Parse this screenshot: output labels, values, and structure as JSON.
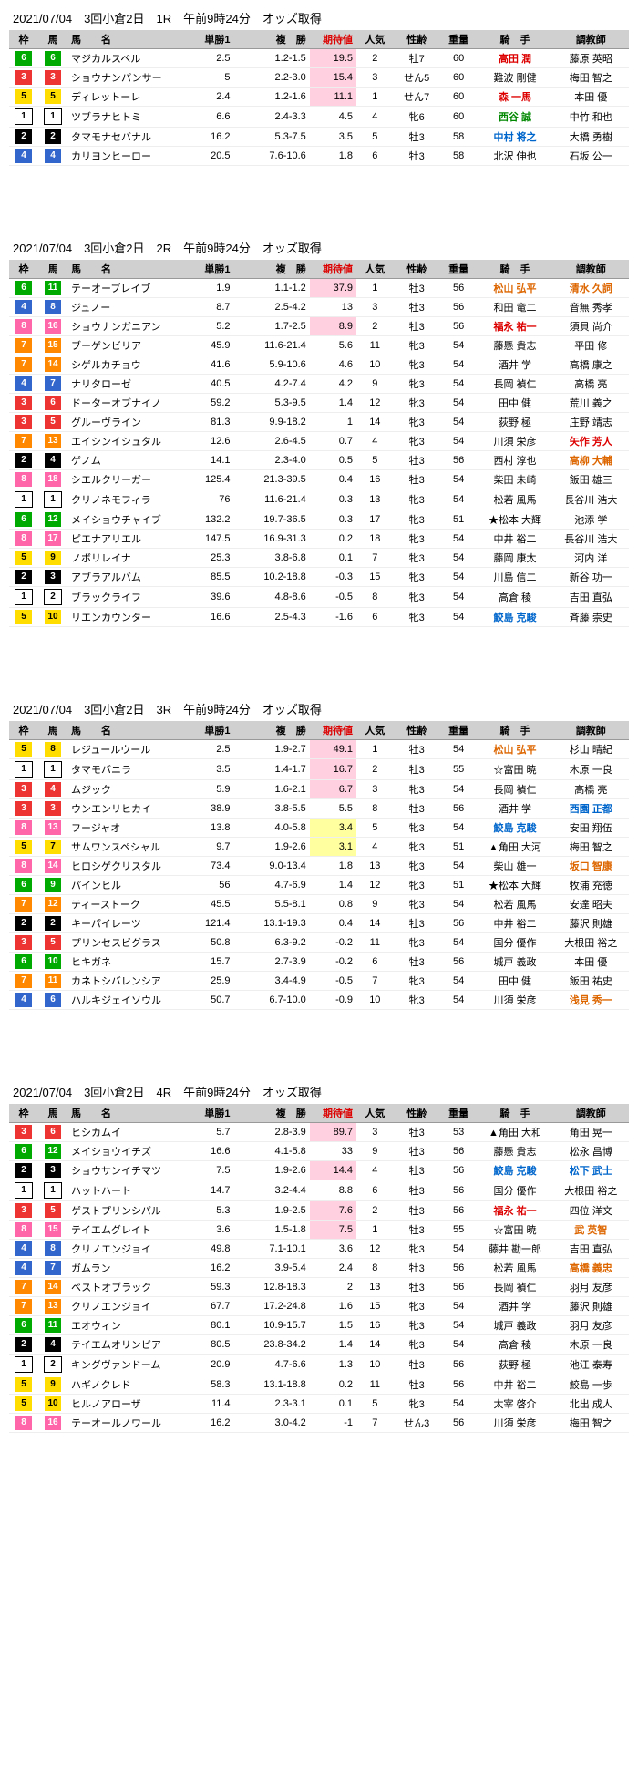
{
  "columns": [
    "枠",
    "馬",
    "馬　　名",
    "単勝1",
    "複　勝",
    "期待値",
    "人気",
    "性齢",
    "重量",
    "騎　手",
    "調教師"
  ],
  "races": [
    {
      "title": "2021/07/04　3回小倉2日　1R　午前9時24分　オッズ取得",
      "rows": [
        {
          "waku": 6,
          "uma": 6,
          "name": "マジカルスペル",
          "tan": "2.5",
          "fuku": "1.2-1.5",
          "kitai": "19.5",
          "kitaiCls": "hi-pink",
          "ninki": 2,
          "sei": "牡7",
          "jur": 60,
          "kishu": "高田 潤",
          "kCls": "red",
          "choku": "藤原 英昭"
        },
        {
          "waku": 3,
          "uma": 3,
          "name": "ショウナンパンサー",
          "tan": "5",
          "fuku": "2.2-3.0",
          "kitai": "15.4",
          "kitaiCls": "hi-pink",
          "ninki": 3,
          "sei": "せん5",
          "jur": 60,
          "kishu": "難波 剛健",
          "choku": "梅田 智之"
        },
        {
          "waku": 5,
          "uma": 5,
          "name": "ディレットーレ",
          "tan": "2.4",
          "fuku": "1.2-1.6",
          "kitai": "11.1",
          "kitaiCls": "hi-pink",
          "ninki": 1,
          "sei": "せん7",
          "jur": 60,
          "kishu": "森 一馬",
          "kCls": "red",
          "choku": "本田 優"
        },
        {
          "waku": 1,
          "uma": 1,
          "name": "ツブラナヒトミ",
          "tan": "6.6",
          "fuku": "2.4-3.3",
          "kitai": "4.5",
          "ninki": 4,
          "sei": "牝6",
          "jur": 60,
          "kishu": "西谷 誠",
          "kCls": "green",
          "choku": "中竹 和也"
        },
        {
          "waku": 2,
          "uma": 2,
          "name": "タマモナセバナル",
          "tan": "16.2",
          "fuku": "5.3-7.5",
          "kitai": "3.5",
          "ninki": 5,
          "sei": "牡3",
          "jur": 58,
          "kishu": "中村 将之",
          "kCls": "blue",
          "choku": "大橋 勇樹"
        },
        {
          "waku": 4,
          "uma": 4,
          "name": "カリヨンヒーロー",
          "tan": "20.5",
          "fuku": "7.6-10.6",
          "kitai": "1.8",
          "ninki": 6,
          "sei": "牡3",
          "jur": 58,
          "kishu": "北沢 伸也",
          "choku": "石坂 公一"
        }
      ]
    },
    {
      "title": "2021/07/04　3回小倉2日　2R　午前9時24分　オッズ取得",
      "rows": [
        {
          "waku": 6,
          "uma": 11,
          "name": "テーオーブレイブ",
          "tan": "1.9",
          "fuku": "1.1-1.2",
          "kitai": "37.9",
          "kitaiCls": "hi-pink",
          "ninki": 1,
          "sei": "牡3",
          "jur": 56,
          "kishu": "松山 弘平",
          "kCls": "orange",
          "choku": "清水 久詞",
          "cCls": "orange"
        },
        {
          "waku": 4,
          "uma": 8,
          "name": "ジュノー",
          "tan": "8.7",
          "fuku": "2.5-4.2",
          "kitai": "13",
          "ninki": 3,
          "sei": "牡3",
          "jur": 56,
          "kishu": "和田 竜二",
          "choku": "音無 秀孝"
        },
        {
          "waku": 8,
          "uma": 16,
          "name": "ショウナンガニアン",
          "tan": "5.2",
          "fuku": "1.7-2.5",
          "kitai": "8.9",
          "kitaiCls": "hi-pink",
          "ninki": 2,
          "sei": "牡3",
          "jur": 56,
          "kishu": "福永 祐一",
          "kCls": "red",
          "choku": "須貝 尚介"
        },
        {
          "waku": 7,
          "uma": 15,
          "name": "ブーゲンビリア",
          "tan": "45.9",
          "fuku": "11.6-21.4",
          "kitai": "5.6",
          "ninki": 11,
          "sei": "牝3",
          "jur": 54,
          "kishu": "藤懸 貴志",
          "choku": "平田 修"
        },
        {
          "waku": 7,
          "uma": 14,
          "name": "シゲルカチョウ",
          "tan": "41.6",
          "fuku": "5.9-10.6",
          "kitai": "4.6",
          "ninki": 10,
          "sei": "牝3",
          "jur": 54,
          "kishu": "酒井 学",
          "choku": "高橋 康之"
        },
        {
          "waku": 4,
          "uma": 7,
          "name": "ナリタローゼ",
          "tan": "40.5",
          "fuku": "4.2-7.4",
          "kitai": "4.2",
          "ninki": 9,
          "sei": "牝3",
          "jur": 54,
          "kishu": "長岡 禎仁",
          "choku": "高橋 亮"
        },
        {
          "waku": 3,
          "uma": 6,
          "name": "ドーターオブナイノ",
          "tan": "59.2",
          "fuku": "5.3-9.5",
          "kitai": "1.4",
          "ninki": 12,
          "sei": "牝3",
          "jur": 54,
          "kishu": "田中 健",
          "choku": "荒川 義之"
        },
        {
          "waku": 3,
          "uma": 5,
          "name": "グルーヴライン",
          "tan": "81.3",
          "fuku": "9.9-18.2",
          "kitai": "1",
          "ninki": 14,
          "sei": "牝3",
          "jur": 54,
          "kishu": "荻野 極",
          "choku": "庄野 靖志"
        },
        {
          "waku": 7,
          "uma": 13,
          "name": "エイシンイシュタル",
          "tan": "12.6",
          "fuku": "2.6-4.5",
          "kitai": "0.7",
          "ninki": 4,
          "sei": "牝3",
          "jur": 54,
          "kishu": "川須 栄彦",
          "choku": "矢作 芳人",
          "cCls": "red"
        },
        {
          "waku": 2,
          "uma": 4,
          "name": "ゲノム",
          "tan": "14.1",
          "fuku": "2.3-4.0",
          "kitai": "0.5",
          "ninki": 5,
          "sei": "牡3",
          "jur": 56,
          "kishu": "西村 淳也",
          "choku": "高柳 大輔",
          "cCls": "orange"
        },
        {
          "waku": 8,
          "uma": 18,
          "name": "シエルクリーガー",
          "tan": "125.4",
          "fuku": "21.3-39.5",
          "kitai": "0.4",
          "ninki": 16,
          "sei": "牡3",
          "jur": 54,
          "kishu": "柴田 未崎",
          "choku": "飯田 雄三"
        },
        {
          "waku": 1,
          "uma": 1,
          "name": "クリノネモフィラ",
          "tan": "76",
          "fuku": "11.6-21.4",
          "kitai": "0.3",
          "ninki": 13,
          "sei": "牝3",
          "jur": 54,
          "kishu": "松若 風馬",
          "choku": "長谷川 浩大"
        },
        {
          "waku": 6,
          "uma": 12,
          "name": "メイショウチャイブ",
          "tan": "132.2",
          "fuku": "19.7-36.5",
          "kitai": "0.3",
          "ninki": 17,
          "sei": "牝3",
          "jur": 51,
          "kishu": "★松本 大輝",
          "choku": "池添 学"
        },
        {
          "waku": 8,
          "uma": 17,
          "name": "ピエナアリエル",
          "tan": "147.5",
          "fuku": "16.9-31.3",
          "kitai": "0.2",
          "ninki": 18,
          "sei": "牝3",
          "jur": 54,
          "kishu": "中井 裕二",
          "choku": "長谷川 浩大"
        },
        {
          "waku": 5,
          "uma": 9,
          "name": "ノボリレイナ",
          "tan": "25.3",
          "fuku": "3.8-6.8",
          "kitai": "0.1",
          "ninki": 7,
          "sei": "牝3",
          "jur": 54,
          "kishu": "藤岡 康太",
          "choku": "河内 洋"
        },
        {
          "waku": 2,
          "uma": 3,
          "name": "アブラアルバム",
          "tan": "85.5",
          "fuku": "10.2-18.8",
          "kitai": "-0.3",
          "ninki": 15,
          "sei": "牝3",
          "jur": 54,
          "kishu": "川島 信二",
          "choku": "新谷 功一"
        },
        {
          "waku": 1,
          "uma": 2,
          "name": "ブラックライフ",
          "tan": "39.6",
          "fuku": "4.8-8.6",
          "kitai": "-0.5",
          "ninki": 8,
          "sei": "牝3",
          "jur": 54,
          "kishu": "高倉 稜",
          "choku": "吉田 直弘"
        },
        {
          "waku": 5,
          "uma": 10,
          "name": "リエンカウンター",
          "tan": "16.6",
          "fuku": "2.5-4.3",
          "kitai": "-1.6",
          "ninki": 6,
          "sei": "牝3",
          "jur": 54,
          "kishu": "鮫島 克駿",
          "kCls": "blue",
          "choku": "斉藤 崇史"
        }
      ]
    },
    {
      "title": "2021/07/04　3回小倉2日　3R　午前9時24分　オッズ取得",
      "rows": [
        {
          "waku": 5,
          "uma": 8,
          "name": "レジュールウール",
          "tan": "2.5",
          "fuku": "1.9-2.7",
          "kitai": "49.1",
          "kitaiCls": "hi-pink",
          "ninki": 1,
          "sei": "牡3",
          "jur": 54,
          "kishu": "松山 弘平",
          "kCls": "orange",
          "choku": "杉山 晴紀"
        },
        {
          "waku": 1,
          "uma": 1,
          "name": "タマモバニラ",
          "tan": "3.5",
          "fuku": "1.4-1.7",
          "kitai": "16.7",
          "kitaiCls": "hi-pink",
          "ninki": 2,
          "sei": "牡3",
          "jur": 55,
          "kishu": "☆富田 暁",
          "choku": "木原 一良"
        },
        {
          "waku": 3,
          "uma": 4,
          "name": "ムジック",
          "tan": "5.9",
          "fuku": "1.6-2.1",
          "kitai": "6.7",
          "kitaiCls": "hi-pink",
          "ninki": 3,
          "sei": "牝3",
          "jur": 54,
          "kishu": "長岡 禎仁",
          "choku": "高橋 亮"
        },
        {
          "waku": 3,
          "uma": 3,
          "name": "ウンエンリヒカイ",
          "tan": "38.9",
          "fuku": "3.8-5.5",
          "kitai": "5.5",
          "ninki": 8,
          "sei": "牡3",
          "jur": 56,
          "kishu": "酒井 学",
          "choku": "西園 正都",
          "cCls": "blue"
        },
        {
          "waku": 8,
          "uma": 13,
          "name": "フージャオ",
          "tan": "13.8",
          "fuku": "4.0-5.8",
          "kitai": "3.4",
          "kitaiCls": "hi-yellow",
          "ninki": 5,
          "sei": "牝3",
          "jur": 54,
          "kishu": "鮫島 克駿",
          "kCls": "blue",
          "choku": "安田 翔伍"
        },
        {
          "waku": 5,
          "uma": 7,
          "name": "サムワンスペシャル",
          "tan": "9.7",
          "fuku": "1.9-2.6",
          "kitai": "3.1",
          "kitaiCls": "hi-yellow",
          "ninki": 4,
          "sei": "牝3",
          "jur": 51,
          "kishu": "▲角田 大河",
          "choku": "梅田 智之"
        },
        {
          "waku": 8,
          "uma": 14,
          "name": "ヒロシゲクリスタル",
          "tan": "73.4",
          "fuku": "9.0-13.4",
          "kitai": "1.8",
          "ninki": 13,
          "sei": "牝3",
          "jur": 54,
          "kishu": "柴山 雄一",
          "choku": "坂口 智康",
          "cCls": "orange"
        },
        {
          "waku": 6,
          "uma": 9,
          "name": "パインヒル",
          "tan": "56",
          "fuku": "4.7-6.9",
          "kitai": "1.4",
          "ninki": 12,
          "sei": "牝3",
          "jur": 51,
          "kishu": "★松本 大輝",
          "choku": "牧浦 充徳"
        },
        {
          "waku": 7,
          "uma": 12,
          "name": "ティーストーク",
          "tan": "45.5",
          "fuku": "5.5-8.1",
          "kitai": "0.8",
          "ninki": 9,
          "sei": "牝3",
          "jur": 54,
          "kishu": "松若 風馬",
          "choku": "安達 昭夫"
        },
        {
          "waku": 2,
          "uma": 2,
          "name": "キーパイレーツ",
          "tan": "121.4",
          "fuku": "13.1-19.3",
          "kitai": "0.4",
          "ninki": 14,
          "sei": "牡3",
          "jur": 56,
          "kishu": "中井 裕二",
          "choku": "藤沢 則雄"
        },
        {
          "waku": 3,
          "uma": 5,
          "name": "プリンセスビグラス",
          "tan": "50.8",
          "fuku": "6.3-9.2",
          "kitai": "-0.2",
          "ninki": 11,
          "sei": "牝3",
          "jur": 54,
          "kishu": "国分 優作",
          "choku": "大根田 裕之"
        },
        {
          "waku": 6,
          "uma": 10,
          "name": "ヒキガネ",
          "tan": "15.7",
          "fuku": "2.7-3.9",
          "kitai": "-0.2",
          "ninki": 6,
          "sei": "牡3",
          "jur": 56,
          "kishu": "城戸 義政",
          "choku": "本田 優"
        },
        {
          "waku": 7,
          "uma": 11,
          "name": "カネトシバレンシア",
          "tan": "25.9",
          "fuku": "3.4-4.9",
          "kitai": "-0.5",
          "ninki": 7,
          "sei": "牝3",
          "jur": 54,
          "kishu": "田中 健",
          "choku": "飯田 祐史"
        },
        {
          "waku": 4,
          "uma": 6,
          "name": "ハルキジェイソウル",
          "tan": "50.7",
          "fuku": "6.7-10.0",
          "kitai": "-0.9",
          "ninki": 10,
          "sei": "牝3",
          "jur": 54,
          "kishu": "川須 栄彦",
          "choku": "浅見 秀一",
          "cCls": "orange"
        }
      ]
    },
    {
      "title": "2021/07/04　3回小倉2日　4R　午前9時24分　オッズ取得",
      "rows": [
        {
          "waku": 3,
          "uma": 6,
          "name": "ヒシカムイ",
          "tan": "5.7",
          "fuku": "2.8-3.9",
          "kitai": "89.7",
          "kitaiCls": "hi-pink",
          "ninki": 3,
          "sei": "牡3",
          "jur": 53,
          "kishu": "▲角田 大和",
          "choku": "角田 晃一"
        },
        {
          "waku": 6,
          "uma": 12,
          "name": "メイショウイチズ",
          "tan": "16.6",
          "fuku": "4.1-5.8",
          "kitai": "33",
          "ninki": 9,
          "sei": "牡3",
          "jur": 56,
          "kishu": "藤懸 貴志",
          "choku": "松永 昌博"
        },
        {
          "waku": 2,
          "uma": 3,
          "name": "ショウサンイチマツ",
          "tan": "7.5",
          "fuku": "1.9-2.6",
          "kitai": "14.4",
          "kitaiCls": "hi-pink",
          "ninki": 4,
          "sei": "牡3",
          "jur": 56,
          "kishu": "鮫島 克駿",
          "kCls": "blue",
          "choku": "松下 武士",
          "cCls": "blue"
        },
        {
          "waku": 1,
          "uma": 1,
          "name": "ハットハート",
          "tan": "14.7",
          "fuku": "3.2-4.4",
          "kitai": "8.8",
          "ninki": 6,
          "sei": "牡3",
          "jur": 56,
          "kishu": "国分 優作",
          "choku": "大根田 裕之"
        },
        {
          "waku": 3,
          "uma": 5,
          "name": "ゲストプリンシパル",
          "tan": "5.3",
          "fuku": "1.9-2.5",
          "kitai": "7.6",
          "kitaiCls": "hi-pink",
          "ninki": 2,
          "sei": "牡3",
          "jur": 56,
          "kishu": "福永 祐一",
          "kCls": "red",
          "choku": "四位 洋文"
        },
        {
          "waku": 8,
          "uma": 15,
          "name": "テイエムグレイト",
          "tan": "3.6",
          "fuku": "1.5-1.8",
          "kitai": "7.5",
          "kitaiCls": "hi-pink",
          "ninki": 1,
          "sei": "牡3",
          "jur": 55,
          "kishu": "☆富田 暁",
          "choku": "武 英智",
          "cCls": "orange"
        },
        {
          "waku": 4,
          "uma": 8,
          "name": "クリノエンジョイ",
          "tan": "49.8",
          "fuku": "7.1-10.1",
          "kitai": "3.6",
          "ninki": 12,
          "sei": "牝3",
          "jur": 54,
          "kishu": "藤井 勘一郎",
          "choku": "吉田 直弘"
        },
        {
          "waku": 4,
          "uma": 7,
          "name": "ガムラン",
          "tan": "16.2",
          "fuku": "3.9-5.4",
          "kitai": "2.4",
          "ninki": 8,
          "sei": "牡3",
          "jur": 56,
          "kishu": "松若 風馬",
          "choku": "高橋 義忠",
          "cCls": "orange"
        },
        {
          "waku": 7,
          "uma": 14,
          "name": "ベストオブラック",
          "tan": "59.3",
          "fuku": "12.8-18.3",
          "kitai": "2",
          "ninki": 13,
          "sei": "牡3",
          "jur": 56,
          "kishu": "長岡 禎仁",
          "choku": "羽月 友彦"
        },
        {
          "waku": 7,
          "uma": 13,
          "name": "クリノエンジョイ",
          "tan": "67.7",
          "fuku": "17.2-24.8",
          "kitai": "1.6",
          "ninki": 15,
          "sei": "牝3",
          "jur": 54,
          "kishu": "酒井 学",
          "choku": "藤沢 則雄"
        },
        {
          "waku": 6,
          "uma": 11,
          "name": "エオウィン",
          "tan": "80.1",
          "fuku": "10.9-15.7",
          "kitai": "1.5",
          "ninki": 16,
          "sei": "牝3",
          "jur": 54,
          "kishu": "城戸 義政",
          "choku": "羽月 友彦"
        },
        {
          "waku": 2,
          "uma": 4,
          "name": "テイエムオリンピア",
          "tan": "80.5",
          "fuku": "23.8-34.2",
          "kitai": "1.4",
          "ninki": 14,
          "sei": "牝3",
          "jur": 54,
          "kishu": "高倉 稜",
          "choku": "木原 一良"
        },
        {
          "waku": 1,
          "uma": 2,
          "name": "キングヴァンドーム",
          "tan": "20.9",
          "fuku": "4.7-6.6",
          "kitai": "1.3",
          "ninki": 10,
          "sei": "牡3",
          "jur": 56,
          "kishu": "荻野 極",
          "choku": "池江 泰寿"
        },
        {
          "waku": 5,
          "uma": 9,
          "name": "ハギノクレド",
          "tan": "58.3",
          "fuku": "13.1-18.8",
          "kitai": "0.2",
          "ninki": 11,
          "sei": "牡3",
          "jur": 56,
          "kishu": "中井 裕二",
          "choku": "鮫島 一歩"
        },
        {
          "waku": 5,
          "uma": 10,
          "name": "ヒルノアローザ",
          "tan": "11.4",
          "fuku": "2.3-3.1",
          "kitai": "0.1",
          "ninki": 5,
          "sei": "牝3",
          "jur": 54,
          "kishu": "太宰 啓介",
          "choku": "北出 成人"
        },
        {
          "waku": 8,
          "uma": 16,
          "name": "テーオールノワール",
          "tan": "16.2",
          "fuku": "3.0-4.2",
          "kitai": "-1",
          "ninki": 7,
          "sei": "せん3",
          "jur": 56,
          "kishu": "川須 栄彦",
          "choku": "梅田 智之"
        }
      ]
    }
  ]
}
